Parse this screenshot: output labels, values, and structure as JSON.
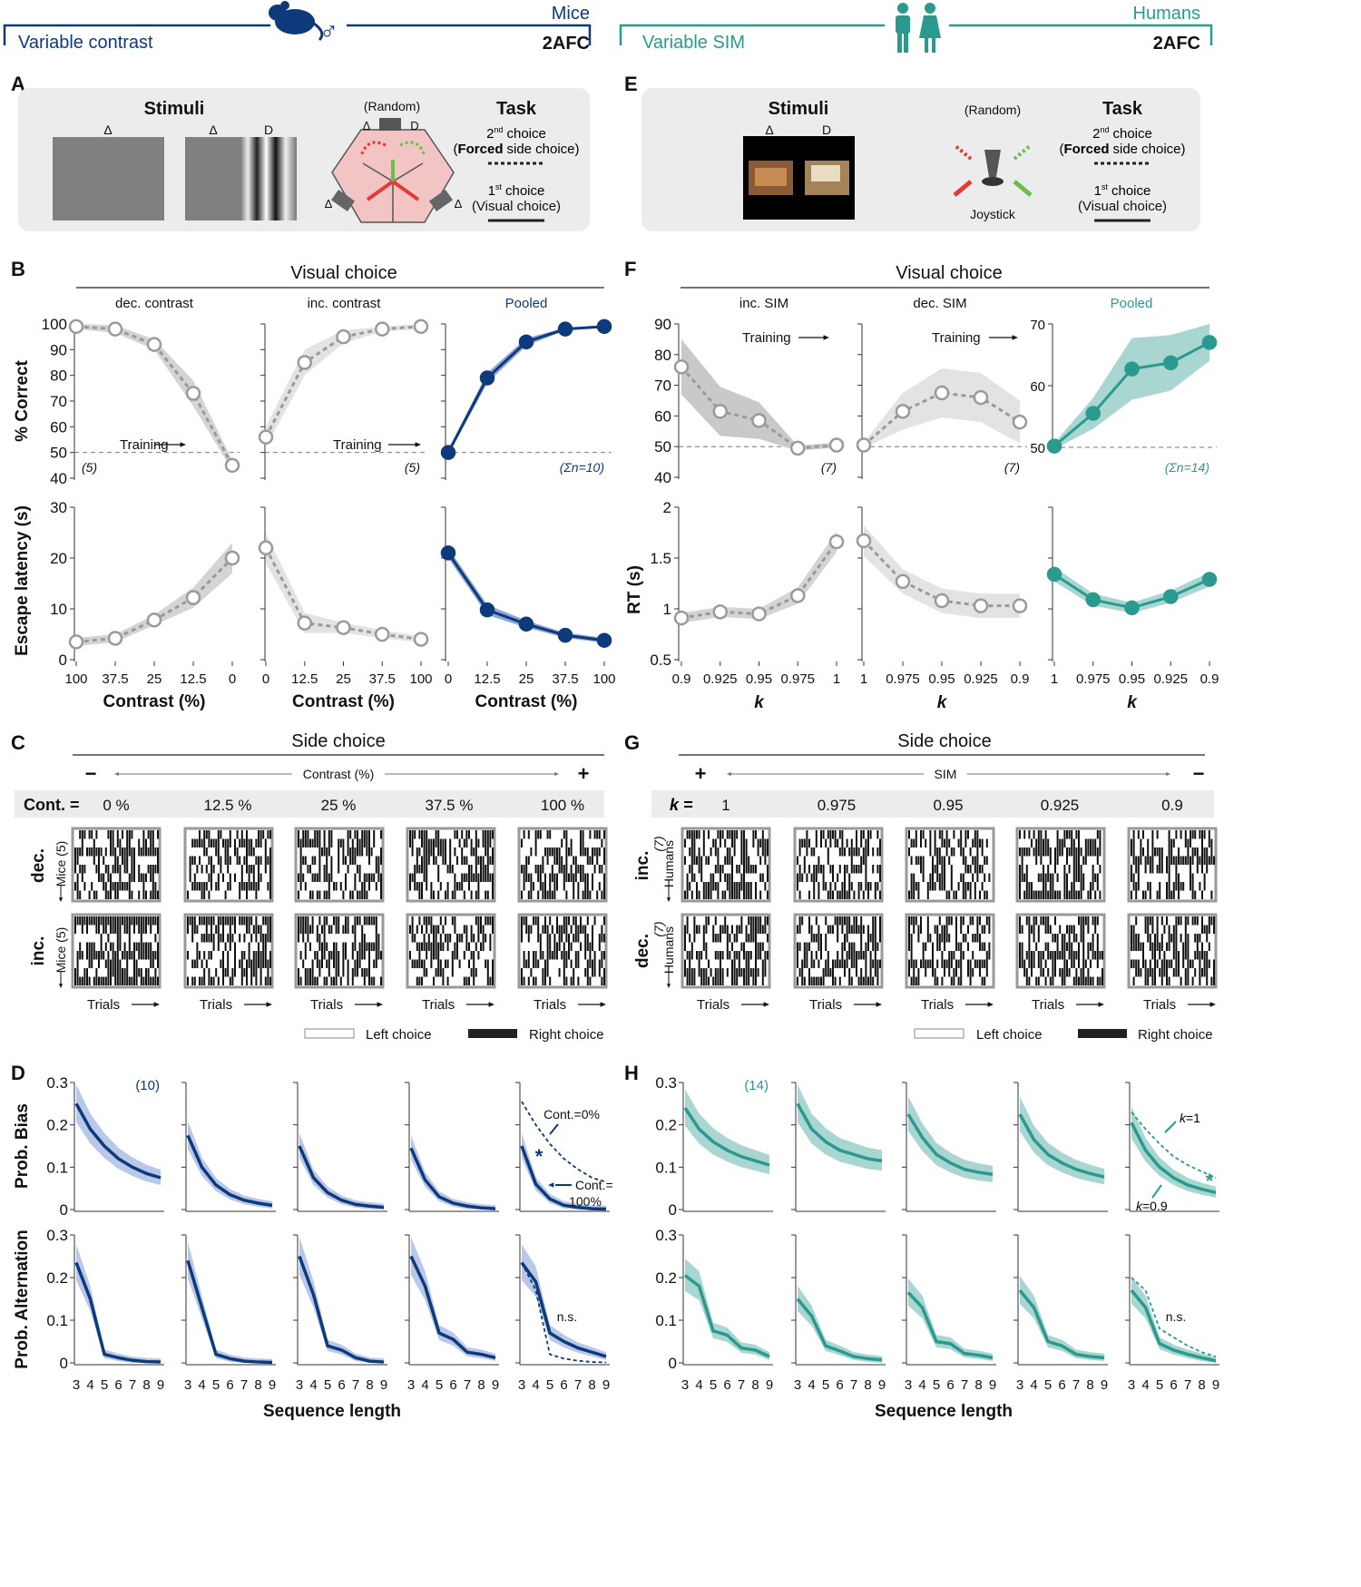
{
  "colors": {
    "mice": "#0d3a7a",
    "miceLight": "#8fa6d6",
    "humans": "#2a9a8e",
    "humansLight": "#a9d6d0",
    "gray": "#9a9a9a",
    "grayLight": "#d4d4d4",
    "panel": "#ececec"
  },
  "header": {
    "left": {
      "label": "Variable contrast",
      "species": "Mice",
      "task": "2AFC",
      "sex": "♂"
    },
    "right": {
      "label": "Variable SIM",
      "species": "Humans",
      "task": "2AFC"
    }
  },
  "panelLetters": {
    "A": "A",
    "B": "B",
    "C": "C",
    "D": "D",
    "E": "E",
    "F": "F",
    "G": "G",
    "H": "H"
  },
  "panelA": {
    "stimuliTitle": "Stimuli",
    "delta": "Δ",
    "d": "D",
    "random": "(Random)",
    "taskTitle": "Task",
    "second": "2",
    "secondSup": "nd",
    "secondWord": "choice",
    "forced1": "(",
    "forcedBold": "Forced",
    "forced2": "side choice)",
    "first": "1",
    "firstSup": "st",
    "firstWord": "choice",
    "visual": "(Visual choice)"
  },
  "panelE": {
    "stimuliTitle": "Stimuli",
    "delta": "Δ",
    "d": "D",
    "random": "(Random)",
    "joystick": "Joystick",
    "taskTitle": "Task",
    "second": "2",
    "secondSup": "nd",
    "secondWord": "choice",
    "forced1": "(",
    "forcedBold": "Forced",
    "forced2": "side choice)",
    "first": "1",
    "firstSup": "st",
    "firstWord": "choice",
    "visual": "(Visual choice)"
  },
  "panelB": {
    "title": "Visual choice",
    "subtitles": [
      "dec. contrast",
      "inc. contrast",
      "Pooled"
    ],
    "ylabelTop": "% Correct",
    "ylabelBottom": "Escape latency (s)",
    "xlabel": "Contrast (%)",
    "training": "Training",
    "counts": [
      "(5)",
      "(5)",
      "(Σn=10)"
    ],
    "yTicksTop": [
      "40",
      "50",
      "60",
      "70",
      "80",
      "90",
      "100"
    ],
    "yTicksBottom": [
      "0",
      "10",
      "20",
      "30"
    ],
    "xTicks": [
      [
        "100",
        "37.5",
        "25",
        "12.5",
        "0"
      ],
      [
        "0",
        "12.5",
        "25",
        "37.5",
        "100"
      ],
      [
        "0",
        "12.5",
        "25",
        "37.5",
        "100"
      ]
    ]
  },
  "panelF": {
    "title": "Visual choice",
    "subtitles": [
      "inc. SIM",
      "dec. SIM",
      "Pooled"
    ],
    "ylabelBottom": "RT (s)",
    "xlabel": "k",
    "training": "Training",
    "counts": [
      "(7)",
      "(7)",
      "(Σn=14)"
    ],
    "yTicksTop": [
      "40",
      "50",
      "60",
      "70",
      "80",
      "90"
    ],
    "yTicksTop3": [
      "50",
      "60",
      "70"
    ],
    "yTicksBottom": [
      "0.5",
      "1",
      "1.5",
      "2"
    ],
    "xTicks": [
      [
        "0.9",
        "0.925",
        "0.95",
        "0.975",
        "1"
      ],
      [
        "1",
        "0.975",
        "0.95",
        "0.925",
        "0.9"
      ],
      [
        "1",
        "0.975",
        "0.95",
        "0.925",
        "0.9"
      ]
    ]
  },
  "panelC": {
    "title": "Side choice",
    "minus": "−",
    "plus": "+",
    "axis": "Contrast (%)",
    "rowLabel": "Cont. =",
    "conditions": [
      "0 %",
      "12.5 %",
      "25 %",
      "37.5 %",
      "100 %"
    ],
    "rows": [
      "dec.",
      "inc."
    ],
    "subject": "Mice (5)",
    "trials": "Trials",
    "legendLeft": "Left choice",
    "legendRight": "Right choice"
  },
  "panelG": {
    "title": "Side choice",
    "plus": "+",
    "minus": "−",
    "axis": "SIM",
    "rowLabel": "k =",
    "conditions": [
      "1",
      "0.975",
      "0.95",
      "0.925",
      "0.9"
    ],
    "rows": [
      "inc.",
      "dec."
    ],
    "subject": "Humans",
    "subjectN": "(7)",
    "trials": "Trials",
    "legendLeft": "Left choice",
    "legendRight": "Right choice"
  },
  "panelD": {
    "ylabelTop": "Prob. Bias",
    "ylabelBottom": "Prob. Alternation",
    "xlabel": "Sequence length",
    "count": "(10)",
    "yTicks": [
      "0",
      "0.1",
      "0.2",
      "0.3"
    ],
    "xTicks": [
      "3",
      "4",
      "5",
      "6",
      "7",
      "8",
      "9"
    ],
    "annot": {
      "contZero": "Cont.=0%",
      "contHundred": "Cont.=",
      "contHundred2": "100%",
      "star": "*",
      "ns": "n.s."
    }
  },
  "panelH": {
    "ylabelTop": "",
    "xlabel": "Sequence length",
    "count": "(14)",
    "yTicks": [
      "0",
      "0.1",
      "0.2",
      "0.3"
    ],
    "xTicks": [
      "3",
      "4",
      "5",
      "6",
      "7",
      "8",
      "9"
    ],
    "annot": {
      "k1": "k",
      "k1b": "=1",
      "k09": "k",
      "k09b": "=0.9",
      "star": "*",
      "ns": "n.s."
    }
  },
  "chart_data": [
    {
      "type": "line",
      "panel": "B",
      "title": "dec. contrast",
      "xlabel": "Contrast (%)",
      "ylabel": "% Correct",
      "categories": [
        "100",
        "37.5",
        "25",
        "12.5",
        "0"
      ],
      "ylim": [
        40,
        100
      ],
      "series": [
        {
          "name": "% correct",
          "values": [
            99,
            98,
            92,
            73,
            45
          ]
        }
      ]
    },
    {
      "type": "line",
      "panel": "B",
      "title": "inc. contrast",
      "categories": [
        "0",
        "12.5",
        "25",
        "37.5",
        "100"
      ],
      "ylim": [
        40,
        100
      ],
      "series": [
        {
          "name": "% correct",
          "values": [
            56,
            85,
            95,
            98,
            99
          ]
        }
      ]
    },
    {
      "type": "line",
      "panel": "B",
      "title": "Pooled",
      "categories": [
        "0",
        "12.5",
        "25",
        "37.5",
        "100"
      ],
      "ylim": [
        40,
        100
      ],
      "series": [
        {
          "name": "% correct",
          "values": [
            50,
            79,
            93,
            98,
            99
          ]
        }
      ]
    },
    {
      "type": "line",
      "panel": "B",
      "title": "dec. contrast",
      "ylabel": "Escape latency (s)",
      "categories": [
        "100",
        "37.5",
        "25",
        "12.5",
        "0"
      ],
      "ylim": [
        0,
        30
      ],
      "series": [
        {
          "name": "latency",
          "values": [
            3.5,
            4.2,
            7.8,
            12.2,
            20
          ]
        }
      ]
    },
    {
      "type": "line",
      "panel": "B",
      "title": "inc. contrast",
      "categories": [
        "0",
        "12.5",
        "25",
        "37.5",
        "100"
      ],
      "ylim": [
        0,
        30
      ],
      "series": [
        {
          "name": "latency",
          "values": [
            22,
            7.2,
            6.3,
            5,
            4
          ]
        }
      ]
    },
    {
      "type": "line",
      "panel": "B",
      "title": "Pooled",
      "categories": [
        "0",
        "12.5",
        "25",
        "37.5",
        "100"
      ],
      "ylim": [
        0,
        30
      ],
      "series": [
        {
          "name": "latency",
          "values": [
            21,
            9.8,
            7,
            4.8,
            3.8
          ]
        }
      ]
    },
    {
      "type": "line",
      "panel": "F",
      "title": "inc. SIM",
      "xlabel": "k",
      "categories": [
        "0.9",
        "0.925",
        "0.95",
        "0.975",
        "1"
      ],
      "ylim": [
        40,
        90
      ],
      "series": [
        {
          "name": "% correct",
          "values": [
            76,
            61.5,
            58.5,
            49.5,
            50.5
          ]
        }
      ]
    },
    {
      "type": "line",
      "panel": "F",
      "title": "dec. SIM",
      "categories": [
        "1",
        "0.975",
        "0.95",
        "0.925",
        "0.9"
      ],
      "ylim": [
        40,
        90
      ],
      "series": [
        {
          "name": "% correct",
          "values": [
            50.5,
            61.5,
            67.5,
            66,
            58
          ]
        }
      ]
    },
    {
      "type": "line",
      "panel": "F",
      "title": "Pooled",
      "categories": [
        "1",
        "0.975",
        "0.95",
        "0.925",
        "0.9"
      ],
      "ylim": [
        50,
        70
      ],
      "series": [
        {
          "name": "% correct",
          "values": [
            50.2,
            55.5,
            62.7,
            63.7,
            67
          ]
        }
      ]
    },
    {
      "type": "line",
      "panel": "F",
      "title": "inc. SIM",
      "ylabel": "RT (s)",
      "categories": [
        "0.9",
        "0.925",
        "0.95",
        "0.975",
        "1"
      ],
      "ylim": [
        0.5,
        2
      ],
      "series": [
        {
          "name": "RT",
          "values": [
            0.91,
            0.97,
            0.95,
            1.13,
            1.66
          ]
        }
      ]
    },
    {
      "type": "line",
      "panel": "F",
      "title": "dec. SIM",
      "categories": [
        "1",
        "0.975",
        "0.95",
        "0.925",
        "0.9"
      ],
      "ylim": [
        0.5,
        2
      ],
      "series": [
        {
          "name": "RT",
          "values": [
            1.67,
            1.27,
            1.08,
            1.03,
            1.03
          ]
        }
      ]
    },
    {
      "type": "line",
      "panel": "F",
      "title": "Pooled",
      "categories": [
        "1",
        "0.975",
        "0.95",
        "0.925",
        "0.9"
      ],
      "ylim": [
        0.5,
        2
      ],
      "series": [
        {
          "name": "RT",
          "values": [
            1.34,
            1.09,
            1.01,
            1.12,
            1.29
          ]
        }
      ]
    },
    {
      "type": "line",
      "panel": "D",
      "xlabel": "Sequence length",
      "x": [
        3,
        4,
        5,
        6,
        7,
        8,
        9
      ],
      "ylim": [
        0,
        0.3
      ],
      "bias": [
        [
          0.25,
          0.19,
          0.15,
          0.12,
          0.1,
          0.085,
          0.075
        ],
        [
          0.175,
          0.1,
          0.058,
          0.035,
          0.022,
          0.015,
          0.01
        ],
        [
          0.15,
          0.075,
          0.04,
          0.022,
          0.012,
          0.008,
          0.005
        ],
        [
          0.145,
          0.07,
          0.03,
          0.015,
          0.008,
          0.004,
          0.002
        ],
        [
          0.15,
          0.06,
          0.025,
          0.01,
          0.005,
          0.002,
          0.001
        ]
      ],
      "biasRef": [
        0.255,
        0.2,
        0.155,
        0.12,
        0.095,
        0.075,
        0.065
      ],
      "alternation": [
        [
          0.235,
          0.15,
          0.02,
          0.012,
          0.006,
          0.003,
          0.002
        ],
        [
          0.24,
          0.13,
          0.02,
          0.01,
          0.004,
          0.002,
          0.001
        ],
        [
          0.25,
          0.16,
          0.04,
          0.03,
          0.012,
          0.004,
          0.002
        ],
        [
          0.25,
          0.18,
          0.07,
          0.055,
          0.025,
          0.02,
          0.012
        ],
        [
          0.235,
          0.19,
          0.07,
          0.05,
          0.035,
          0.025,
          0.015
        ]
      ],
      "alternationRef": [
        0.235,
        0.17,
        0.02,
        0.01,
        0.005,
        0.002,
        0.001
      ]
    },
    {
      "type": "line",
      "panel": "H",
      "xlabel": "Sequence length",
      "x": [
        3,
        4,
        5,
        6,
        7,
        8,
        9
      ],
      "ylim": [
        0,
        0.3
      ],
      "bias": [
        [
          0.24,
          0.19,
          0.16,
          0.14,
          0.125,
          0.115,
          0.105
        ],
        [
          0.25,
          0.19,
          0.16,
          0.14,
          0.13,
          0.12,
          0.115
        ],
        [
          0.225,
          0.17,
          0.13,
          0.11,
          0.095,
          0.088,
          0.083
        ],
        [
          0.225,
          0.165,
          0.13,
          0.11,
          0.095,
          0.085,
          0.077
        ],
        [
          0.205,
          0.14,
          0.1,
          0.075,
          0.058,
          0.048,
          0.04
        ]
      ],
      "biasRef": [
        0.23,
        0.19,
        0.155,
        0.125,
        0.105,
        0.09,
        0.075
      ],
      "alternation": [
        [
          0.205,
          0.18,
          0.075,
          0.065,
          0.035,
          0.03,
          0.015
        ],
        [
          0.15,
          0.11,
          0.04,
          0.028,
          0.015,
          0.01,
          0.007
        ],
        [
          0.165,
          0.13,
          0.05,
          0.045,
          0.022,
          0.018,
          0.012
        ],
        [
          0.17,
          0.13,
          0.05,
          0.04,
          0.02,
          0.015,
          0.012
        ],
        [
          0.17,
          0.13,
          0.045,
          0.03,
          0.02,
          0.012,
          0.005
        ]
      ],
      "alternationRef": [
        0.2,
        0.17,
        0.08,
        0.06,
        0.04,
        0.025,
        0.015
      ]
    }
  ]
}
